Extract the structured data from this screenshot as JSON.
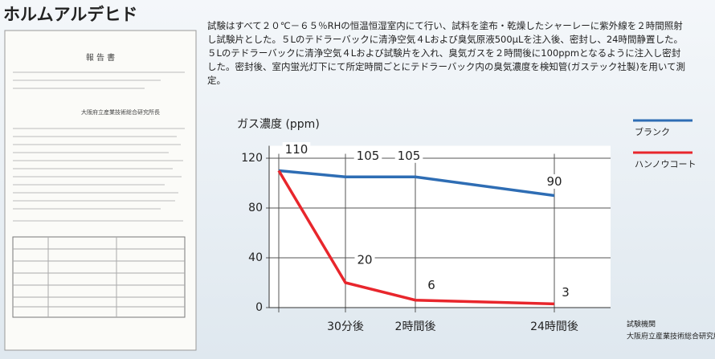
{
  "header": {
    "title": "ホルムアルデヒド"
  },
  "description": "試験はすべて２０℃－６５％RHの恒温恒湿室内にて行い、試料を塗布・乾燥したシャーレーに紫外線を２時間照射し試験片とした。５Lのテドラーバックに清浄空気４Lおよび臭気原液500μLを注入後、密封し、24時間静置した。５Lのテドラーバックに清浄空気４Lおよび試験片を入れ、臭気ガスを２時間後に100ppmとなるように注入し密封した。密封後、室内蛍光灯下にて所定時間ごとにテドラーバック内の臭気濃度を検知管(ガステック社製)を用いて測定。",
  "report": {
    "title": "報 告 書",
    "issuer": "大阪府立産業技術総合研究所長"
  },
  "chart_data": {
    "type": "line",
    "y_label": "ガス濃度 (ppm)",
    "categories": [
      null,
      "30分後",
      "2時間後",
      "24時間後"
    ],
    "series": [
      {
        "name": "ブランク",
        "color": "#2e6db4",
        "values": [
          110,
          105,
          105,
          90
        ]
      },
      {
        "name": "ハンノウコート",
        "color": "#e8262c",
        "values": [
          110,
          20,
          6,
          3
        ]
      }
    ],
    "ylim": [
      0,
      130
    ],
    "yticks": [
      0,
      40,
      80,
      120
    ],
    "grid": true
  },
  "footnote": {
    "label": "試験機関",
    "org": "大阪府立産業技術総合研究所"
  }
}
